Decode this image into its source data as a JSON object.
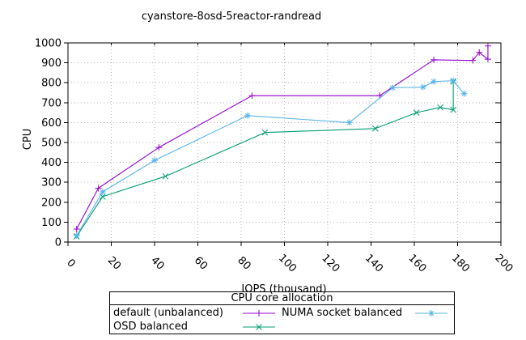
{
  "chart_data": {
    "type": "line",
    "title": "cyanstore-8osd-5reactor-randread",
    "xlabel": "IOPS (thousand)",
    "ylabel": "CPU",
    "xlim": [
      0,
      200
    ],
    "ylim": [
      0,
      1000
    ],
    "xticks": [
      0,
      20,
      40,
      60,
      80,
      100,
      120,
      140,
      160,
      180,
      200
    ],
    "yticks": [
      0,
      100,
      200,
      300,
      400,
      500,
      600,
      700,
      800,
      900,
      1000
    ],
    "grid": true,
    "legend": {
      "title": "CPU core allocation",
      "position": "below-plot",
      "entries": [
        {
          "label": "default (unbalanced)",
          "color": "#9400d3",
          "marker": "plus"
        },
        {
          "label": "NUMA socket balanced",
          "color": "#56b4e9",
          "marker": "star"
        },
        {
          "label": "OSD balanced",
          "color": "#009e73",
          "marker": "cross"
        }
      ]
    },
    "series": [
      {
        "name": "default (unbalanced)",
        "color": "#9400d3",
        "marker": "plus",
        "points": [
          [
            4,
            65
          ],
          [
            14,
            270
          ],
          [
            42,
            475
          ],
          [
            85,
            735
          ],
          [
            144,
            735
          ],
          [
            169,
            915
          ],
          [
            187,
            912
          ],
          [
            190,
            952
          ],
          [
            194,
            918
          ],
          [
            194,
            985
          ]
        ]
      },
      {
        "name": "OSD balanced",
        "color": "#009e73",
        "marker": "cross",
        "points": [
          [
            4,
            28
          ],
          [
            16,
            228
          ],
          [
            45,
            330
          ],
          [
            91,
            550
          ],
          [
            142,
            570
          ],
          [
            161,
            650
          ],
          [
            172,
            676
          ],
          [
            178,
            664
          ],
          [
            178,
            806
          ]
        ]
      },
      {
        "name": "NUMA socket balanced",
        "color": "#56b4e9",
        "marker": "star",
        "points": [
          [
            4,
            32
          ],
          [
            16,
            252
          ],
          [
            40,
            410
          ],
          [
            83,
            635
          ],
          [
            130,
            600
          ],
          [
            150,
            775
          ],
          [
            164,
            778
          ],
          [
            169,
            806
          ],
          [
            178,
            810
          ],
          [
            183,
            745
          ]
        ]
      }
    ]
  },
  "colors": {
    "background": "#ffffff",
    "axis": "#000000",
    "grid": "#b3b3b3",
    "text": "#000000"
  }
}
